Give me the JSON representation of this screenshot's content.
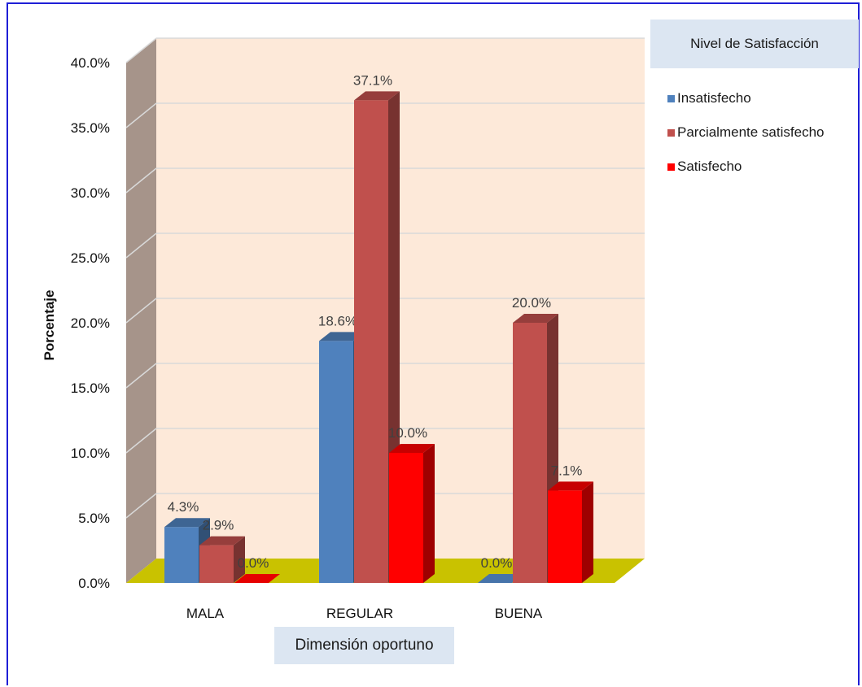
{
  "chart_data": {
    "type": "bar",
    "title": "",
    "xlabel": "Dimensión oportuno",
    "ylabel": "Porcentaje",
    "categories": [
      "MALA",
      "REGULAR",
      "BUENA"
    ],
    "series": [
      {
        "name": "Insatisfecho",
        "values": [
          4.3,
          18.6,
          0.0
        ],
        "labels": [
          "4.3%",
          "18.6%",
          "0.0%"
        ]
      },
      {
        "name": "Parcialmente satisfecho",
        "values": [
          2.9,
          37.1,
          20.0
        ],
        "labels": [
          "2.9%",
          "37.1%",
          "20.0%"
        ]
      },
      {
        "name": "Satisfecho",
        "values": [
          0.0,
          10.0,
          7.1
        ],
        "labels": [
          "0.0%",
          "10.0%",
          "7.1%"
        ]
      }
    ],
    "ylim": [
      0,
      40
    ],
    "yticks": [
      "0.0%",
      "5.0%",
      "10.0%",
      "15.0%",
      "20.0%",
      "25.0%",
      "30.0%",
      "35.0%",
      "40.0%"
    ],
    "legend_title": "Nivel de Satisfacción",
    "legend_position": "top-right",
    "grid": true,
    "style": "3d-clustered-column"
  },
  "colors": {
    "insatisfecho": "#4f81bd",
    "parcialmente": "#c0504d",
    "satisfecho": "#ff0000",
    "plot_background": "#fde9d9",
    "side_wall": "#a6948a",
    "floor": "#c9c200",
    "label_box": "#dce6f2"
  }
}
